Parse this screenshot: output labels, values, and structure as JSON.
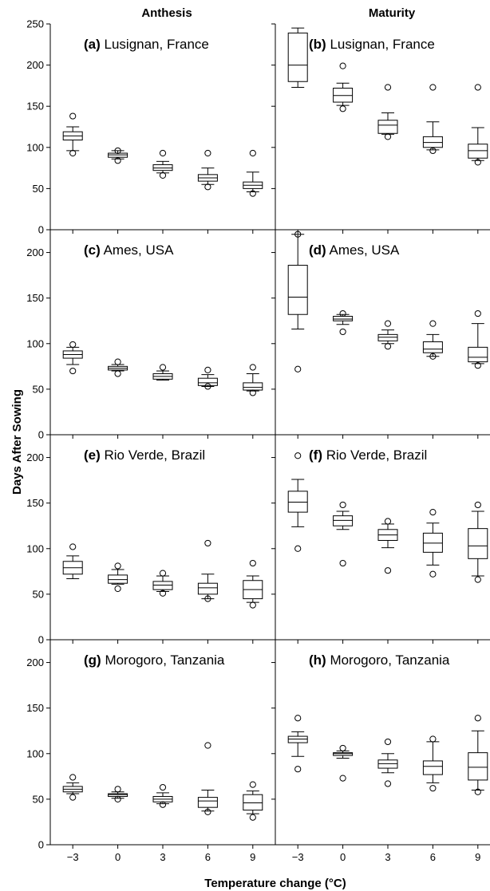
{
  "figure": {
    "col_titles": [
      "Anthesis",
      "Maturity"
    ],
    "ylabel": "Days After Sowing",
    "xlabel": "Temperature change (°C)"
  },
  "chart_data": [
    {
      "type": "box",
      "panel": "(a)",
      "site": "Lusignan, France",
      "stage": "Anthesis",
      "categories": [
        "−3",
        "0",
        "3",
        "6",
        "9"
      ],
      "ylim": [
        0,
        250
      ],
      "yticks": [
        0,
        50,
        100,
        150,
        200,
        250
      ],
      "boxes": [
        {
          "whislo": 96,
          "q1": 109,
          "med": 114,
          "q3": 119,
          "whishi": 125,
          "fliers": [
            93,
            138
          ]
        },
        {
          "whislo": 86,
          "q1": 88,
          "med": 91,
          "q3": 93,
          "whishi": 96,
          "fliers": [
            84,
            96
          ]
        },
        {
          "whislo": 69,
          "q1": 72,
          "med": 75,
          "q3": 79,
          "whishi": 83,
          "fliers": [
            66,
            93
          ]
        },
        {
          "whislo": 55,
          "q1": 59,
          "med": 63,
          "q3": 67,
          "whishi": 75,
          "fliers": [
            52,
            93
          ]
        },
        {
          "whislo": 46,
          "q1": 50,
          "med": 54,
          "q3": 58,
          "whishi": 70,
          "fliers": [
            44,
            93
          ]
        }
      ]
    },
    {
      "type": "box",
      "panel": "(b)",
      "site": "Lusignan, France",
      "stage": "Maturity",
      "categories": [
        "−3",
        "0",
        "3",
        "6",
        "9"
      ],
      "ylim": [
        0,
        250
      ],
      "yticks": [
        0,
        50,
        100,
        150,
        200,
        250
      ],
      "boxes": [
        {
          "whislo": 173,
          "q1": 180,
          "med": 200,
          "q3": 239,
          "whishi": 245,
          "fliers": []
        },
        {
          "whislo": 151,
          "q1": 155,
          "med": 163,
          "q3": 172,
          "whishi": 178,
          "fliers": [
            147,
            199
          ]
        },
        {
          "whislo": 116,
          "q1": 117,
          "med": 127,
          "q3": 133,
          "whishi": 142,
          "fliers": [
            113,
            173
          ]
        },
        {
          "whislo": 97,
          "q1": 100,
          "med": 106,
          "q3": 113,
          "whishi": 131,
          "fliers": [
            96,
            173
          ]
        },
        {
          "whislo": 84,
          "q1": 87,
          "med": 96,
          "q3": 104,
          "whishi": 124,
          "fliers": [
            82,
            173
          ]
        }
      ]
    },
    {
      "type": "box",
      "panel": "(c)",
      "site": "Ames, USA",
      "stage": "Anthesis",
      "categories": [
        "−3",
        "0",
        "3",
        "6",
        "9"
      ],
      "ylim": [
        0,
        225
      ],
      "yticks": [
        0,
        50,
        100,
        150,
        200
      ],
      "boxes": [
        {
          "whislo": 77,
          "q1": 84,
          "med": 88,
          "q3": 92,
          "whishi": 96,
          "fliers": [
            70,
            99
          ]
        },
        {
          "whislo": 70,
          "q1": 71,
          "med": 73,
          "q3": 75,
          "whishi": 77,
          "fliers": [
            67,
            80
          ]
        },
        {
          "whislo": 60,
          "q1": 61,
          "med": 64,
          "q3": 67,
          "whishi": 70,
          "fliers": [
            74
          ]
        },
        {
          "whislo": 53,
          "q1": 54,
          "med": 57,
          "q3": 62,
          "whishi": 66,
          "fliers": [
            53,
            71
          ]
        },
        {
          "whislo": 48,
          "q1": 49,
          "med": 52,
          "q3": 57,
          "whishi": 67,
          "fliers": [
            46,
            74
          ]
        }
      ]
    },
    {
      "type": "box",
      "panel": "(d)",
      "site": "Ames, USA",
      "stage": "Maturity",
      "categories": [
        "−3",
        "0",
        "3",
        "6",
        "9"
      ],
      "ylim": [
        0,
        225
      ],
      "yticks": [
        0,
        50,
        100,
        150,
        200
      ],
      "boxes": [
        {
          "whislo": 116,
          "q1": 132,
          "med": 151,
          "q3": 186,
          "whishi": 220,
          "fliers": [
            72,
            220
          ]
        },
        {
          "whislo": 121,
          "q1": 125,
          "med": 127,
          "q3": 130,
          "whishi": 132,
          "fliers": [
            113,
            133
          ]
        },
        {
          "whislo": 100,
          "q1": 103,
          "med": 107,
          "q3": 110,
          "whishi": 115,
          "fliers": [
            97,
            122
          ]
        },
        {
          "whislo": 86,
          "q1": 90,
          "med": 94,
          "q3": 102,
          "whishi": 110,
          "fliers": [
            86,
            122
          ]
        },
        {
          "whislo": 78,
          "q1": 80,
          "med": 85,
          "q3": 96,
          "whishi": 122,
          "fliers": [
            76,
            133
          ]
        }
      ]
    },
    {
      "type": "box",
      "panel": "(e)",
      "site": "Rio Verde, Brazil",
      "stage": "Anthesis",
      "categories": [
        "−3",
        "0",
        "3",
        "6",
        "9"
      ],
      "ylim": [
        0,
        225
      ],
      "yticks": [
        0,
        50,
        100,
        150,
        200
      ],
      "boxes": [
        {
          "whislo": 67,
          "q1": 72,
          "med": 79,
          "q3": 86,
          "whishi": 92,
          "fliers": [
            102
          ]
        },
        {
          "whislo": 61,
          "q1": 62,
          "med": 66,
          "q3": 71,
          "whishi": 77,
          "fliers": [
            56,
            81
          ]
        },
        {
          "whislo": 53,
          "q1": 55,
          "med": 60,
          "q3": 64,
          "whishi": 70,
          "fliers": [
            51,
            73
          ]
        },
        {
          "whislo": 45,
          "q1": 50,
          "med": 57,
          "q3": 62,
          "whishi": 72,
          "fliers": [
            45,
            106
          ]
        },
        {
          "whislo": 41,
          "q1": 45,
          "med": 55,
          "q3": 65,
          "whishi": 70,
          "fliers": [
            38,
            84
          ]
        }
      ]
    },
    {
      "type": "box",
      "panel": "(f)",
      "site": "Rio Verde, Brazil",
      "stage": "Maturity",
      "categories": [
        "−3",
        "0",
        "3",
        "6",
        "9"
      ],
      "ylim": [
        0,
        225
      ],
      "yticks": [
        0,
        50,
        100,
        150,
        200
      ],
      "boxes": [
        {
          "whislo": 124,
          "q1": 140,
          "med": 151,
          "q3": 163,
          "whishi": 176,
          "fliers": [
            100,
            202
          ]
        },
        {
          "whislo": 121,
          "q1": 125,
          "med": 131,
          "q3": 136,
          "whishi": 141,
          "fliers": [
            84,
            148
          ]
        },
        {
          "whislo": 101,
          "q1": 109,
          "med": 115,
          "q3": 121,
          "whishi": 127,
          "fliers": [
            76,
            130
          ]
        },
        {
          "whislo": 82,
          "q1": 96,
          "med": 106,
          "q3": 117,
          "whishi": 128,
          "fliers": [
            72,
            140
          ]
        },
        {
          "whislo": 70,
          "q1": 89,
          "med": 103,
          "q3": 122,
          "whishi": 141,
          "fliers": [
            66,
            148
          ]
        }
      ]
    },
    {
      "type": "box",
      "panel": "(g)",
      "site": "Morogoro, Tanzania",
      "stage": "Anthesis",
      "categories": [
        "−3",
        "0",
        "3",
        "6",
        "9"
      ],
      "ylim": [
        0,
        225
      ],
      "yticks": [
        0,
        50,
        100,
        150,
        200
      ],
      "boxes": [
        {
          "whislo": 56,
          "q1": 58,
          "med": 61,
          "q3": 64,
          "whishi": 68,
          "fliers": [
            52,
            74
          ]
        },
        {
          "whislo": 51,
          "q1": 53,
          "med": 55,
          "q3": 56,
          "whishi": 58,
          "fliers": [
            50,
            61
          ]
        },
        {
          "whislo": 45,
          "q1": 47,
          "med": 50,
          "q3": 53,
          "whishi": 57,
          "fliers": [
            44,
            63
          ]
        },
        {
          "whislo": 37,
          "q1": 41,
          "med": 48,
          "q3": 52,
          "whishi": 60,
          "fliers": [
            36,
            109
          ]
        },
        {
          "whislo": 34,
          "q1": 38,
          "med": 46,
          "q3": 55,
          "whishi": 59,
          "fliers": [
            30,
            66
          ]
        }
      ]
    },
    {
      "type": "box",
      "panel": "(h)",
      "site": "Morogoro, Tanzania",
      "stage": "Maturity",
      "categories": [
        "−3",
        "0",
        "3",
        "6",
        "9"
      ],
      "ylim": [
        0,
        225
      ],
      "yticks": [
        0,
        50,
        100,
        150,
        200
      ],
      "boxes": [
        {
          "whislo": 97,
          "q1": 112,
          "med": 116,
          "q3": 119,
          "whishi": 124,
          "fliers": [
            83,
            139
          ]
        },
        {
          "whislo": 95,
          "q1": 98,
          "med": 100,
          "q3": 101,
          "whishi": 103,
          "fliers": [
            73,
            106
          ]
        },
        {
          "whislo": 79,
          "q1": 84,
          "med": 89,
          "q3": 93,
          "whishi": 100,
          "fliers": [
            67,
            113
          ]
        },
        {
          "whislo": 68,
          "q1": 77,
          "med": 86,
          "q3": 92,
          "whishi": 113,
          "fliers": [
            62,
            116
          ]
        },
        {
          "whislo": 60,
          "q1": 71,
          "med": 85,
          "q3": 101,
          "whishi": 125,
          "fliers": [
            58,
            139
          ]
        }
      ]
    }
  ]
}
